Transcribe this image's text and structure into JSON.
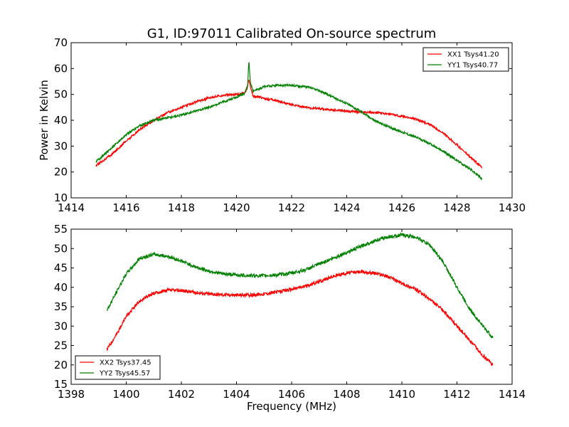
{
  "figure": {
    "title": "G1, ID:97011 Calibrated On-source spectrum",
    "xlabel": "Frequency (MHz)",
    "ylabel": "Power in Kelvin"
  },
  "chart_data": [
    {
      "type": "line",
      "title": "G1, ID:97011 Calibrated On-source spectrum",
      "xlabel": "",
      "ylabel": "Power in Kelvin",
      "xlim": [
        1414,
        1430
      ],
      "ylim": [
        10,
        70
      ],
      "xticks": [
        1414,
        1416,
        1418,
        1420,
        1422,
        1424,
        1426,
        1428,
        1430
      ],
      "yticks": [
        10,
        20,
        30,
        40,
        50,
        60,
        70
      ],
      "grid": false,
      "legend": "top-right",
      "series": [
        {
          "name": "XX1 Tsys41.20",
          "color": "#ff0000",
          "x": [
            1414.9,
            1415.5,
            1416.0,
            1416.5,
            1417.0,
            1417.5,
            1418.0,
            1418.5,
            1419.0,
            1419.5,
            1420.0,
            1420.3,
            1420.4,
            1420.45,
            1420.5,
            1420.6,
            1420.8,
            1421.0,
            1421.5,
            1422.0,
            1422.5,
            1423.0,
            1423.5,
            1424.0,
            1424.5,
            1425.0,
            1425.5,
            1426.0,
            1426.5,
            1427.0,
            1427.5,
            1428.0,
            1428.5,
            1428.9
          ],
          "values": [
            22.5,
            27.0,
            32.0,
            36.5,
            40.0,
            43.0,
            45.0,
            47.0,
            48.7,
            49.7,
            50.0,
            50.5,
            52.5,
            56.0,
            53.0,
            49.5,
            49.0,
            48.5,
            47.5,
            46.0,
            45.0,
            44.5,
            44.0,
            43.5,
            43.2,
            43.0,
            42.5,
            41.5,
            40.5,
            38.5,
            35.0,
            30.5,
            25.5,
            22.0
          ]
        },
        {
          "name": "YY1 Tsys40.77",
          "color": "#008000",
          "x": [
            1414.9,
            1415.5,
            1416.0,
            1416.5,
            1417.0,
            1417.5,
            1418.0,
            1418.5,
            1419.0,
            1419.5,
            1420.0,
            1420.3,
            1420.4,
            1420.45,
            1420.5,
            1420.6,
            1420.8,
            1421.0,
            1421.5,
            1422.0,
            1422.5,
            1423.0,
            1423.5,
            1424.0,
            1424.5,
            1425.0,
            1425.5,
            1426.0,
            1426.5,
            1427.0,
            1427.5,
            1428.0,
            1428.5,
            1428.9
          ],
          "values": [
            24.0,
            29.5,
            34.5,
            38.0,
            40.0,
            41.0,
            42.0,
            43.5,
            45.0,
            47.0,
            49.0,
            50.5,
            53.0,
            63.0,
            55.0,
            51.5,
            52.0,
            53.0,
            53.5,
            53.5,
            53.0,
            51.5,
            49.0,
            46.5,
            43.5,
            40.0,
            37.5,
            35.5,
            33.5,
            31.0,
            28.0,
            24.5,
            21.0,
            17.5
          ]
        }
      ]
    },
    {
      "type": "line",
      "title": "",
      "xlabel": "Frequency (MHz)",
      "ylabel": "",
      "xlim": [
        1398,
        1414
      ],
      "ylim": [
        15,
        55
      ],
      "xticks": [
        1398,
        1400,
        1402,
        1404,
        1406,
        1408,
        1410,
        1412,
        1414
      ],
      "yticks": [
        15,
        20,
        25,
        30,
        35,
        40,
        45,
        50,
        55
      ],
      "grid": false,
      "legend": "bottom-left",
      "series": [
        {
          "name": "XX2 Tsys37.45",
          "color": "#ff0000",
          "x": [
            1399.3,
            1399.7,
            1400.0,
            1400.5,
            1401.0,
            1401.5,
            1402.0,
            1402.5,
            1403.0,
            1403.5,
            1404.0,
            1404.5,
            1405.0,
            1405.5,
            1406.0,
            1406.5,
            1407.0,
            1407.5,
            1408.0,
            1408.5,
            1409.0,
            1409.5,
            1410.0,
            1410.5,
            1411.0,
            1411.5,
            1412.0,
            1412.5,
            1413.0,
            1413.3
          ],
          "values": [
            24.0,
            28.5,
            32.5,
            36.5,
            38.5,
            39.2,
            39.2,
            38.7,
            38.3,
            38.1,
            38.0,
            38.0,
            38.3,
            38.8,
            39.5,
            40.3,
            41.5,
            42.8,
            43.7,
            44.0,
            43.7,
            42.8,
            41.0,
            39.5,
            37.0,
            34.0,
            30.0,
            26.0,
            22.0,
            20.0
          ]
        },
        {
          "name": "YY2 Tsys45.57",
          "color": "#008000",
          "x": [
            1399.3,
            1399.7,
            1400.0,
            1400.5,
            1401.0,
            1401.5,
            1402.0,
            1402.5,
            1403.0,
            1403.5,
            1404.0,
            1404.5,
            1405.0,
            1405.5,
            1406.0,
            1406.5,
            1407.0,
            1407.5,
            1408.0,
            1408.5,
            1409.0,
            1409.5,
            1410.0,
            1410.5,
            1411.0,
            1411.5,
            1412.0,
            1412.5,
            1413.0,
            1413.3
          ],
          "values": [
            34.0,
            39.5,
            43.5,
            47.5,
            48.5,
            48.0,
            46.8,
            45.3,
            44.2,
            43.5,
            43.2,
            43.0,
            43.0,
            43.2,
            43.7,
            44.5,
            46.0,
            47.5,
            49.0,
            50.5,
            52.0,
            53.0,
            53.5,
            53.0,
            51.0,
            46.5,
            40.0,
            34.0,
            29.5,
            27.0
          ]
        }
      ]
    }
  ]
}
